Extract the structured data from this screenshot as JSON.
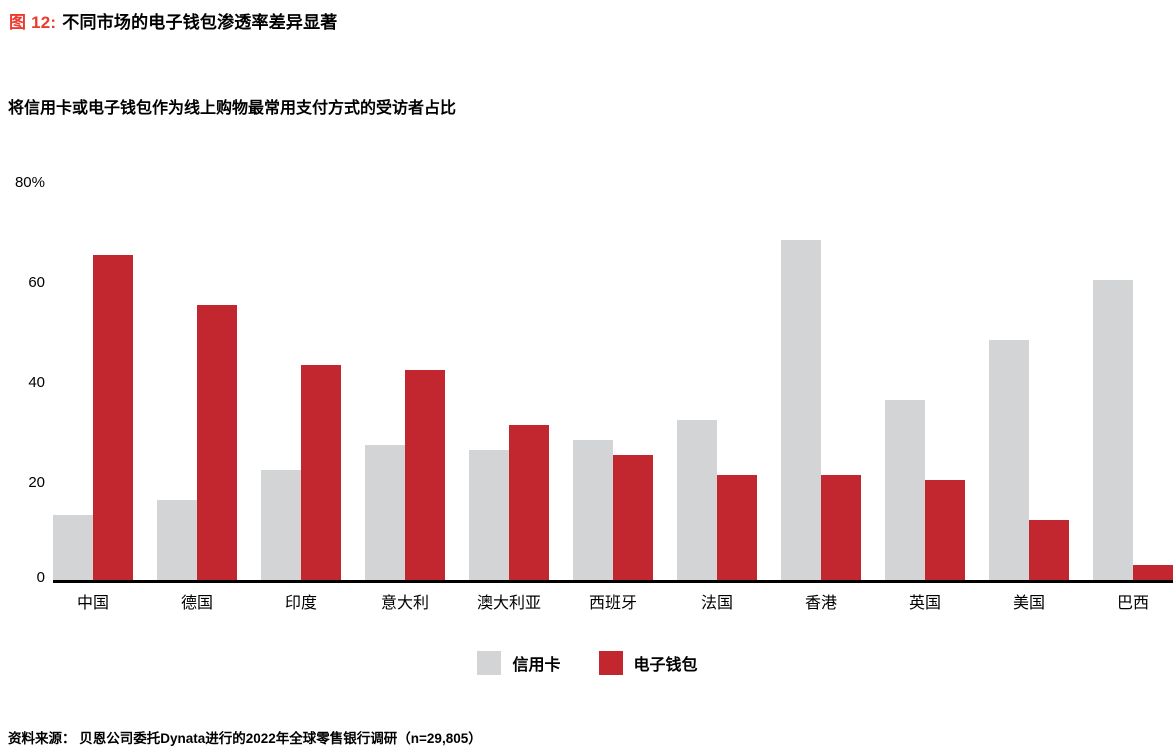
{
  "header": {
    "figure_label": "图 12:",
    "title": "不同市场的电子钱包渗透率差异显著"
  },
  "subtitle": "将信用卡或电子钱包作为线上购物最常用支付方式的受访者占比",
  "colors": {
    "credit_card": "#d3d4d6",
    "ewallet": "#c2262e",
    "figure_label_red": "#ee392f",
    "axis_line": "#000000"
  },
  "chart_data": {
    "type": "bar",
    "title": "将信用卡或电子钱包作为线上购物最常用支付方式的受访者占比",
    "categories": [
      "中国",
      "德国",
      "印度",
      "意大利",
      "澳大利亚",
      "西班牙",
      "法国",
      "香港",
      "英国",
      "美国",
      "巴西"
    ],
    "series": [
      {
        "name": "信用卡",
        "color_key": "credit_card",
        "values": [
          13,
          16,
          22,
          27,
          26,
          28,
          32,
          68,
          36,
          48,
          60
        ]
      },
      {
        "name": "电子钱包",
        "color_key": "ewallet",
        "values": [
          65,
          55,
          43,
          42,
          31,
          25,
          21,
          21,
          20,
          12,
          3
        ]
      }
    ],
    "xlabel": "",
    "ylabel": "",
    "ylim": [
      0,
      80
    ],
    "y_ticks": [
      {
        "label": "80%",
        "value": 80
      },
      {
        "label": "60",
        "value": 60
      },
      {
        "label": "40",
        "value": 40
      },
      {
        "label": "20",
        "value": 20
      },
      {
        "label": "0",
        "value": 0
      }
    ],
    "grid": false,
    "legend_position": "bottom"
  },
  "legend": {
    "items": [
      {
        "label": "信用卡"
      },
      {
        "label": "电子钱包"
      }
    ]
  },
  "footer": {
    "source": "资料来源： 贝恩公司委托Dynata进行的2022年全球零售银行调研（n=29,805）"
  }
}
